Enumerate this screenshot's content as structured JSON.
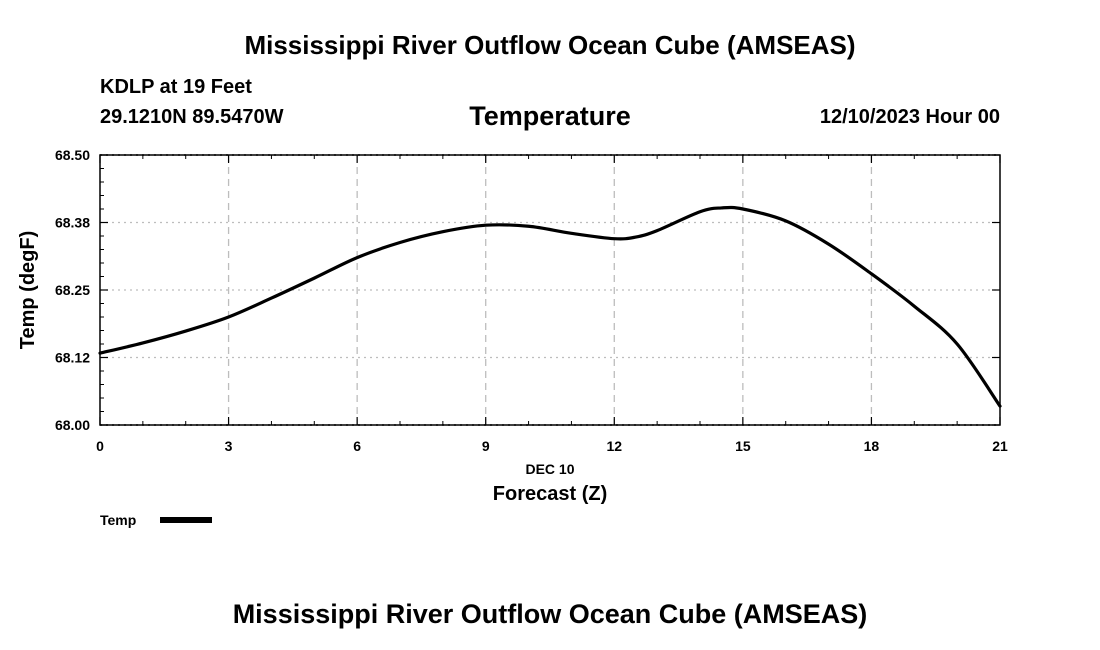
{
  "page": {
    "title": "Mississippi River Outflow Ocean Cube (AMSEAS)",
    "station": "KDLP at 19 Feet",
    "coords": "29.1210N  89.5470W",
    "panel_title": "Temperature",
    "datetime": "12/10/2023 Hour 00",
    "footer_title": "Mississippi River Outflow Ocean Cube (AMSEAS)"
  },
  "chart_data": {
    "type": "line",
    "title": "Temperature",
    "xlabel": "Forecast (Z)",
    "xlabel_date": "DEC 10",
    "ylabel": "Temp (degF)",
    "xlim": [
      0,
      21
    ],
    "ylim": [
      68.0,
      68.5
    ],
    "x_ticks": [
      0,
      3,
      6,
      9,
      12,
      15,
      18,
      21
    ],
    "x_tick_labels": [
      "0",
      "3",
      "6",
      "9",
      "12",
      "15",
      "18",
      "21"
    ],
    "y_ticks": [
      68.0,
      68.125,
      68.25,
      68.375,
      68.5
    ],
    "y_tick_labels": [
      "68.00",
      "68.12",
      "68.25",
      "68.38",
      "68.50"
    ],
    "grid": true,
    "legend": {
      "label": "Temp",
      "placement": "bottom-left"
    },
    "series": [
      {
        "name": "Temp",
        "color": "#000000",
        "x": [
          0,
          1,
          2,
          3,
          4,
          5,
          6,
          7,
          8,
          9,
          10,
          11,
          12,
          12.5,
          13,
          14,
          14.5,
          15,
          16,
          17,
          18,
          19,
          20,
          21
        ],
        "values": [
          68.133,
          68.152,
          68.174,
          68.2,
          68.235,
          68.272,
          68.31,
          68.338,
          68.358,
          68.37,
          68.368,
          68.355,
          68.345,
          68.348,
          68.36,
          68.395,
          68.402,
          68.4,
          68.378,
          68.335,
          68.28,
          68.22,
          68.15,
          68.035
        ]
      }
    ]
  }
}
